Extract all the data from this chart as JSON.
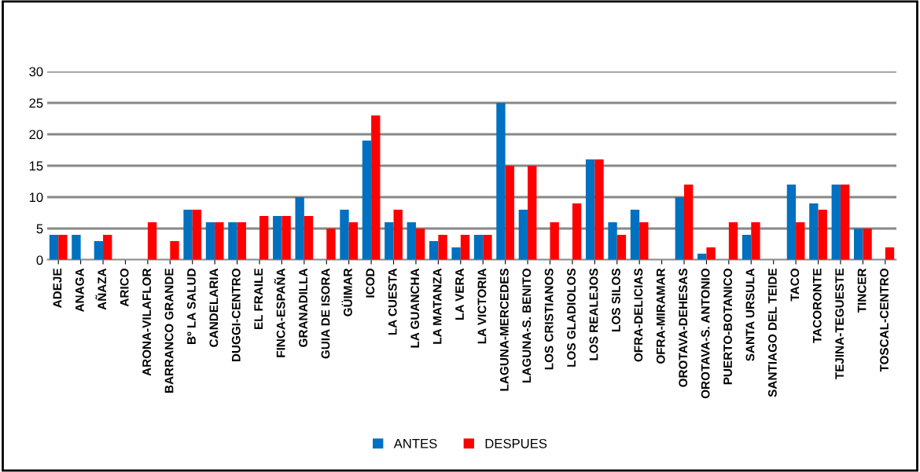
{
  "chart_data": {
    "type": "bar",
    "categories": [
      "ADEJE",
      "ANAGA",
      "AÑAZA",
      "ARICO",
      "ARONA-VILAFLOR",
      "BARRANCO GRANDE",
      "Bº LA SALUD",
      "CANDELARIA",
      "DUGGI-CENTRO",
      "EL FRAILE",
      "FINCA-ESPAÑA",
      "GRANADILLA",
      "GUIA DE ISORA",
      "GÜIMAR",
      "ICOD",
      "LA CUESTA",
      "LA GUANCHA",
      "LA MATANZA",
      "LA VERA",
      "LA VICTORIA",
      "LAGUNA-MERCEDES",
      "LAGUNA-S. BENITO",
      "LOS CRISTIANOS",
      "LOS GLADIOLOS",
      "LOS REALEJOS",
      "LOS SILOS",
      "OFRA-DELICIAS",
      "OFRA-MIRAMAR",
      "OROTAVA-DEHESAS",
      "OROTAVA-S. ANTONIO",
      "PUERTO-BOTANICO",
      "SANTA URSULA",
      "SANTIAGO DEL TEIDE",
      "TACO",
      "TACORONTE",
      "TEJINA-TEGUESTE",
      "TINCER",
      "TOSCAL-CENTRO"
    ],
    "series": [
      {
        "name": "ANTES",
        "color": "#0070c0",
        "values": [
          4,
          4,
          3,
          0,
          0,
          0,
          8,
          6,
          6,
          0,
          7,
          10,
          0,
          8,
          19,
          6,
          6,
          3,
          2,
          4,
          25,
          8,
          0,
          0,
          16,
          6,
          8,
          0,
          10,
          1,
          0,
          4,
          0,
          12,
          9,
          12,
          5,
          0
        ]
      },
      {
        "name": "DESPUES",
        "color": "#ff0000",
        "values": [
          4,
          0,
          4,
          0,
          6,
          3,
          8,
          6,
          6,
          7,
          7,
          7,
          5,
          6,
          23,
          8,
          5,
          4,
          4,
          4,
          15,
          15,
          6,
          9,
          16,
          4,
          6,
          0,
          12,
          2,
          6,
          6,
          0,
          6,
          8,
          12,
          5,
          2
        ]
      }
    ],
    "ylim": [
      0,
      30
    ],
    "yticks": [
      0,
      5,
      10,
      15,
      20,
      25,
      30
    ],
    "grid": "y",
    "legend": "bottom"
  }
}
